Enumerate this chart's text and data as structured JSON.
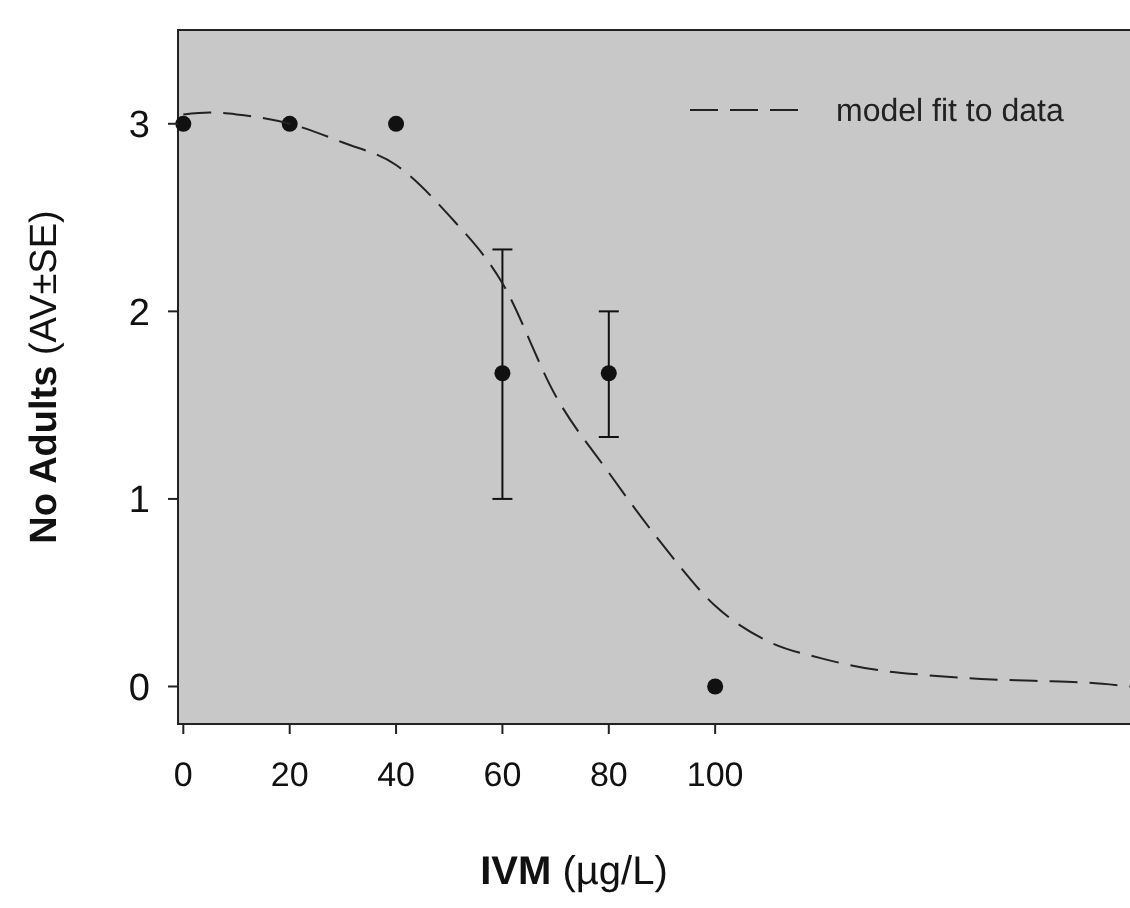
{
  "chart_data": {
    "type": "scatter",
    "xlabel": "IVM (µg/L)",
    "ylabel": "No Adults (AV±SE)",
    "xlim": [
      -1,
      178
    ],
    "ylim": [
      -0.2,
      3.5
    ],
    "xticks": [
      0,
      20,
      40,
      60,
      80,
      100
    ],
    "yticks": [
      0,
      1,
      2,
      3
    ],
    "grid": false,
    "legend": "top right",
    "marker": "circle",
    "series": [
      {
        "color": "#111111",
        "x": [
          0,
          20,
          40,
          60,
          80,
          100
        ],
        "values": [
          3,
          3,
          3,
          1.67,
          1.67,
          0
        ],
        "errors": [
          null,
          null,
          null,
          [
            1,
            2.33
          ],
          [
            1.33,
            2
          ],
          null
        ]
      },
      {
        "type": "line",
        "name": "model fit to data",
        "color": "#222222",
        "line_style": "dashed",
        "marker": "none",
        "x": [
          0,
          5,
          10,
          20,
          30,
          40,
          50,
          60,
          70,
          80,
          90,
          100,
          110,
          120,
          130,
          140,
          150,
          160,
          170,
          178
        ],
        "values": [
          3.05,
          3.06,
          3.05,
          3.0,
          2.9,
          2.78,
          2.51,
          2.15,
          1.55,
          1.14,
          0.76,
          0.43,
          0.24,
          0.15,
          0.09,
          0.06,
          0.04,
          0.03,
          0.02,
          0.0
        ]
      }
    ]
  }
}
